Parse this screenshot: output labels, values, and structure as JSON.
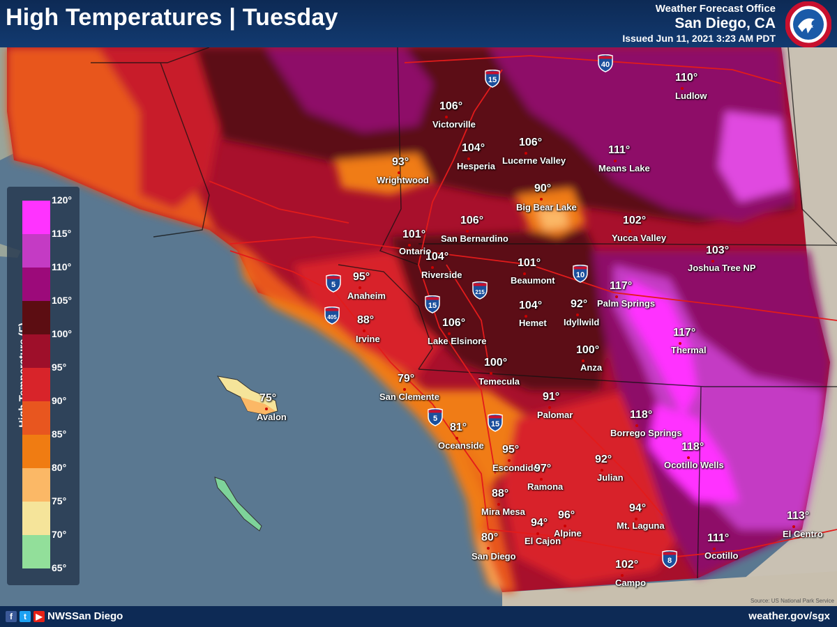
{
  "header": {
    "title": "High Temperatures  |  Tuesday",
    "office": "Weather Forecast Office",
    "city": "San Diego, CA",
    "issued": "Issued Jun 11, 2021 3:23 AM PDT",
    "logo_text": "NATIONAL WEATHER SERVICE"
  },
  "footer": {
    "handle": "NWSSan Diego",
    "website": "weather.gov/sgx",
    "source": "Source: US National Park Service",
    "icons": [
      "facebook-icon",
      "twitter-icon",
      "youtube-icon"
    ]
  },
  "legend": {
    "title": "High Temperature (F)",
    "labels": [
      "120°",
      "115°",
      "110°",
      "105°",
      "100°",
      "95°",
      "90°",
      "85°",
      "80°",
      "75°",
      "70°",
      "65°"
    ],
    "colors": [
      "#ff33ff",
      "#c43bc4",
      "#9c0a7a",
      "#5c0d12",
      "#9e0f2a",
      "#d8242a",
      "#e8561f",
      "#f07c12",
      "#fbb866",
      "#f5e49a",
      "#92df9a"
    ]
  },
  "highways": [
    "40",
    "15",
    "5",
    "405",
    "15",
    "215",
    "10",
    "5",
    "15",
    "8"
  ],
  "cities": [
    {
      "name": "Ludlow",
      "temp": "110°"
    },
    {
      "name": "Victorville",
      "temp": "106°"
    },
    {
      "name": "Hesperia",
      "temp": "104°"
    },
    {
      "name": "Lucerne Valley",
      "temp": "106°"
    },
    {
      "name": "Means Lake",
      "temp": "111°"
    },
    {
      "name": "Wrightwood",
      "temp": "93°"
    },
    {
      "name": "Big Bear Lake",
      "temp": "90°"
    },
    {
      "name": "Ontario",
      "temp": "101°"
    },
    {
      "name": "San Bernardino",
      "temp": "106°"
    },
    {
      "name": "Yucca Valley",
      "temp": "102°"
    },
    {
      "name": "Joshua Tree NP",
      "temp": "103°"
    },
    {
      "name": "Riverside",
      "temp": "104°"
    },
    {
      "name": "Beaumont",
      "temp": "101°"
    },
    {
      "name": "Anaheim",
      "temp": "95°"
    },
    {
      "name": "Palm Springs",
      "temp": "117°"
    },
    {
      "name": "Hemet",
      "temp": "104°"
    },
    {
      "name": "Idyllwild",
      "temp": "92°"
    },
    {
      "name": "Irvine",
      "temp": "88°"
    },
    {
      "name": "Lake Elsinore",
      "temp": "106°"
    },
    {
      "name": "Thermal",
      "temp": "117°"
    },
    {
      "name": "Anza",
      "temp": "100°"
    },
    {
      "name": "Temecula",
      "temp": "100°"
    },
    {
      "name": "San Clemente",
      "temp": "79°"
    },
    {
      "name": "Avalon",
      "temp": "75°"
    },
    {
      "name": "Palomar",
      "temp": "91°"
    },
    {
      "name": "Borrego Springs",
      "temp": "118°"
    },
    {
      "name": "Oceanside",
      "temp": "81°"
    },
    {
      "name": "Ocotillo Wells",
      "temp": "118°"
    },
    {
      "name": "Escondido",
      "temp": "95°"
    },
    {
      "name": "Ramona",
      "temp": "97°"
    },
    {
      "name": "Julian",
      "temp": "92°"
    },
    {
      "name": "Mira Mesa",
      "temp": "88°"
    },
    {
      "name": "El Cajon",
      "temp": "94°"
    },
    {
      "name": "Alpine",
      "temp": "96°"
    },
    {
      "name": "Mt. Laguna",
      "temp": "94°"
    },
    {
      "name": "El Centro",
      "temp": "113°"
    },
    {
      "name": "San Diego",
      "temp": "80°"
    },
    {
      "name": "Ocotillo",
      "temp": "111°"
    },
    {
      "name": "Campo",
      "temp": "102°"
    }
  ]
}
